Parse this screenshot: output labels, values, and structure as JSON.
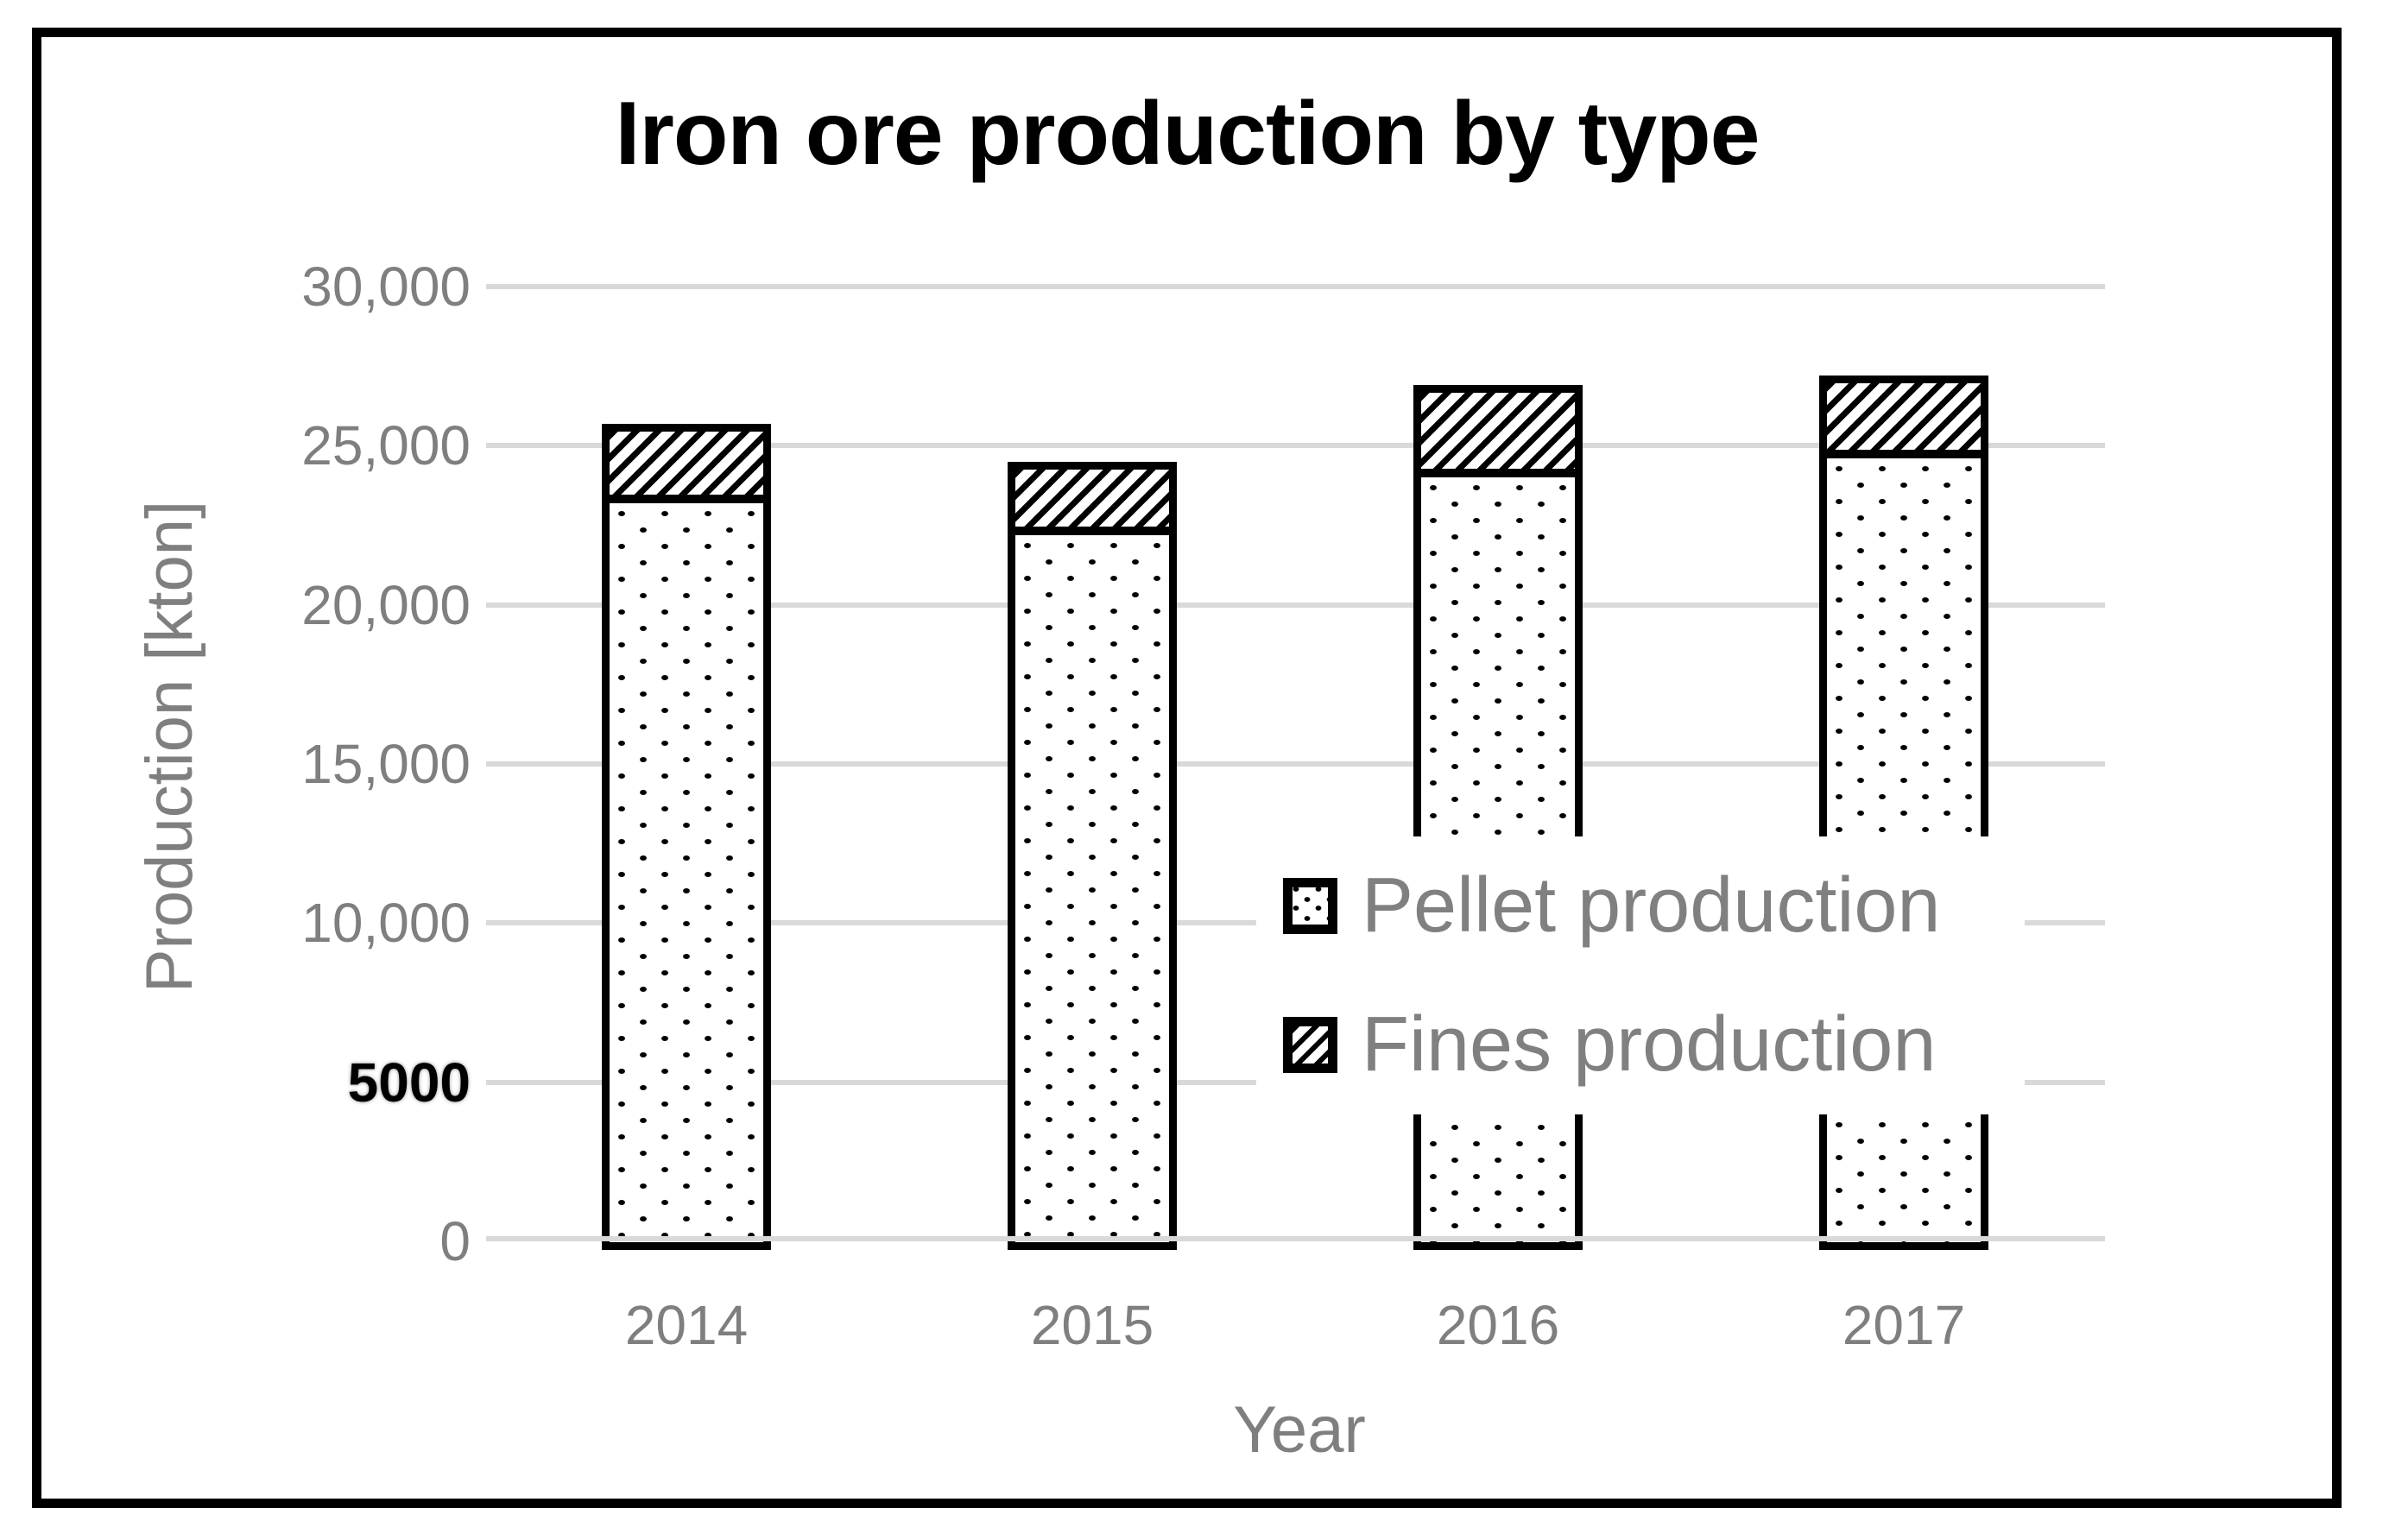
{
  "title": "Iron ore production by type",
  "y_axis": {
    "title": "Production [kton]",
    "ticks": [
      "30,000",
      "25,000",
      "20,000",
      "15,000",
      "10,000",
      "5000",
      "0"
    ]
  },
  "x_axis": {
    "title": "Year",
    "categories": [
      "2014",
      "2015",
      "2016",
      "2017"
    ]
  },
  "legend": {
    "items": [
      {
        "label": "Pellet production",
        "pattern": "dots"
      },
      {
        "label": "Fines production",
        "pattern": "hatch"
      }
    ]
  },
  "chart_data": {
    "type": "bar",
    "stacked": true,
    "title": "Iron ore production by type",
    "xlabel": "Year",
    "ylabel": "Production [kton]",
    "categories": [
      "2014",
      "2015",
      "2016",
      "2017"
    ],
    "series": [
      {
        "name": "Pellet production",
        "pattern": "dots",
        "values": [
          23200,
          22200,
          24000,
          24600
        ]
      },
      {
        "name": "Fines production",
        "pattern": "hatch",
        "values": [
          2500,
          2300,
          2900,
          2600
        ]
      }
    ],
    "totals": [
      25700,
      24500,
      26900,
      27200
    ],
    "ylim": [
      0,
      30000
    ],
    "ytick_step": 5000,
    "grid": true,
    "legend_position": "overlay-middle-right"
  },
  "colors": {
    "background": "#ffffff",
    "frame_border": "#000000",
    "bar_border": "#000000",
    "bar_fill": "#ffffff",
    "gridline": "#d9d9d9",
    "axis_text": "#7f7f7f",
    "legend_text": "#808080",
    "tick_5000": "#000000",
    "title_text": "#000000"
  }
}
